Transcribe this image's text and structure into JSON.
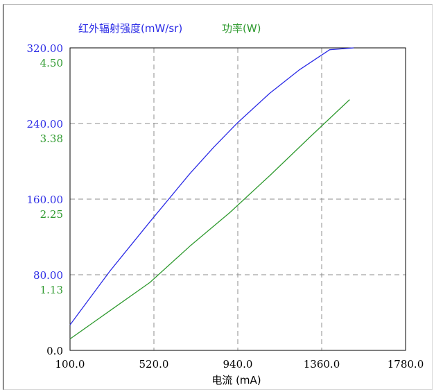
{
  "chart_data": {
    "type": "line",
    "title": "",
    "legend": [
      {
        "text": "红外辐射强度(mW/sr)",
        "color": "#2b2be6"
      },
      {
        "text": "功率(W)",
        "color": "#2f9a2f"
      }
    ],
    "xlabel": "电流 (mA)",
    "xlim": [
      100,
      1780
    ],
    "x_ticks": [
      "100.0",
      "520.0",
      "940.0",
      "1360.0",
      "1780.0"
    ],
    "y_left_ticks": [
      "0.0",
      "80.00",
      "160.00",
      "240.00",
      "320.00"
    ],
    "y_right_ticks": [
      "1.13",
      "2.25",
      "3.38",
      "4.50"
    ],
    "ylim_left": [
      0,
      320
    ],
    "ylim_right": [
      0,
      4.5
    ],
    "grid": true,
    "series": [
      {
        "name": "红外辐射强度(mW/sr)",
        "axis": "left",
        "color": "#2b2be6",
        "x": [
          100,
          300,
          500,
          700,
          820,
          940,
          1100,
          1250,
          1400,
          1520
        ],
        "y": [
          27,
          84,
          136,
          187,
          215,
          241,
          272,
          297,
          318,
          320
        ]
      },
      {
        "name": "功率(W)",
        "axis": "right",
        "color": "#2f9a2f",
        "x": [
          100,
          300,
          500,
          700,
          900,
          1100,
          1300,
          1500
        ],
        "y": [
          0.17,
          0.59,
          1.01,
          1.55,
          2.05,
          2.6,
          3.17,
          3.73
        ]
      }
    ]
  }
}
